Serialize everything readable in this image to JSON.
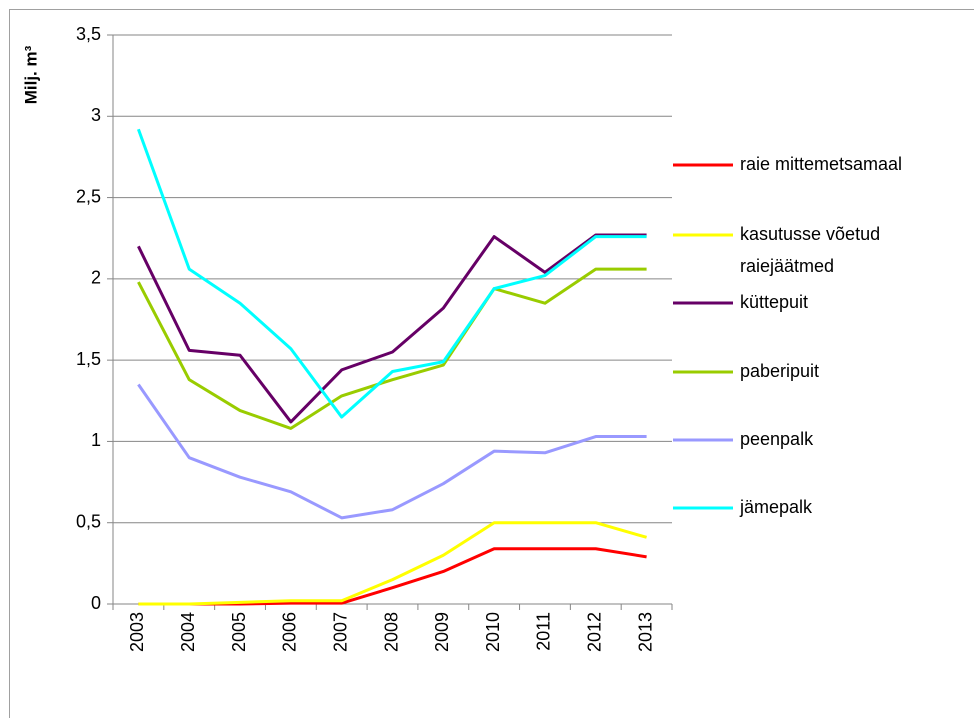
{
  "chart_data": {
    "type": "line",
    "y_label": "Milj. m³",
    "categories": [
      "2003",
      "2004",
      "2005",
      "2006",
      "2007",
      "2008",
      "2009",
      "2010",
      "2011",
      "2012",
      "2013"
    ],
    "series": [
      {
        "name": "raie mittemetsamaal",
        "color": "#ff0000",
        "values": [
          0,
          0,
          0,
          0.005,
          0.005,
          0.1,
          0.2,
          0.34,
          0.34,
          0.34,
          0.29
        ]
      },
      {
        "name": "kasutusse võetud raiejäätmed",
        "color": "#ffff00",
        "values": [
          0,
          0,
          0.01,
          0.02,
          0.02,
          0.15,
          0.3,
          0.5,
          0.5,
          0.5,
          0.41
        ]
      },
      {
        "name": "küttepuit",
        "color": "#660066",
        "values": [
          2.2,
          1.56,
          1.53,
          1.12,
          1.44,
          1.55,
          1.82,
          2.26,
          2.04,
          2.27,
          2.27
        ]
      },
      {
        "name": "paberipuit",
        "color": "#99cc00",
        "values": [
          1.98,
          1.38,
          1.19,
          1.08,
          1.28,
          1.38,
          1.47,
          1.94,
          1.85,
          2.06,
          2.06
        ]
      },
      {
        "name": "peenpalk",
        "color": "#9999ff",
        "values": [
          1.35,
          0.9,
          0.78,
          0.69,
          0.53,
          0.58,
          0.74,
          0.94,
          0.93,
          1.03,
          1.03
        ]
      },
      {
        "name": "jämepalk",
        "color": "#00ffff",
        "values": [
          2.92,
          2.06,
          1.85,
          1.57,
          1.15,
          1.43,
          1.49,
          1.94,
          2.02,
          2.26,
          2.26
        ]
      }
    ],
    "ylim": [
      0,
      3.5
    ],
    "yticks": [
      0,
      {
        "value": 0.5,
        "label": "0,5"
      },
      1,
      {
        "value": 1.5,
        "label": "1,5"
      },
      2,
      {
        "value": 2.5,
        "label": "2,5"
      },
      3,
      {
        "value": 3.5,
        "label": "3,5"
      }
    ],
    "grid": true,
    "legend": "right"
  }
}
